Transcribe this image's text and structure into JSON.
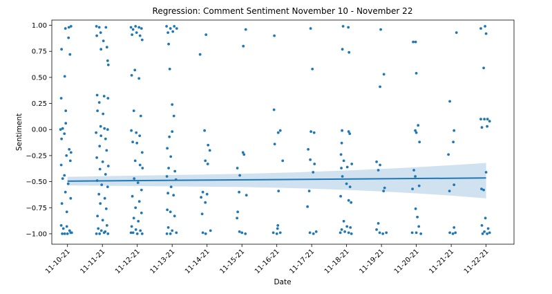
{
  "chart_data": {
    "type": "scatter",
    "title": "Regression: Comment Sentiment November 10 - November 22",
    "xlabel": "Date",
    "ylabel": "Sentiment",
    "categories": [
      "11-10-21",
      "11-11-21",
      "11-12-21",
      "11-13-21",
      "11-14-21",
      "11-15-21",
      "11-16-21",
      "11-17-21",
      "11-18-21",
      "11-19-21",
      "11-20-21",
      "11-21-21",
      "11-22-21"
    ],
    "yticks": [
      1.0,
      0.75,
      0.5,
      0.25,
      0.0,
      -0.25,
      -0.5,
      -0.75,
      -1.0
    ],
    "ytick_labels": [
      "1.00",
      "0.75",
      "0.50",
      "0.25",
      "0.00",
      "−0.25",
      "−0.50",
      "−0.75",
      "−1.00"
    ],
    "xlim": [
      -0.45,
      12.8
    ],
    "ylim": [
      -1.1,
      1.05
    ],
    "grid": false,
    "regression": {
      "start": -0.495,
      "end": -0.465,
      "ci_lower": [
        -0.57,
        -0.66
      ],
      "ci_upper": [
        -0.42,
        -0.32
      ]
    },
    "colors": {
      "points": "#1f77b4",
      "line": "#1f77b4",
      "band": "#a9c8e3"
    },
    "points": [
      {
        "x": -0.17,
        "y": 0.77
      },
      {
        "x": -0.06,
        "y": 0.97
      },
      {
        "x": 0.04,
        "y": 0.98
      },
      {
        "x": 0.1,
        "y": 0.99
      },
      {
        "x": 0.03,
        "y": 0.88
      },
      {
        "x": 0.07,
        "y": 0.72
      },
      {
        "x": -0.08,
        "y": 0.51
      },
      {
        "x": -0.18,
        "y": 0.3
      },
      {
        "x": -0.05,
        "y": 0.18
      },
      {
        "x": -0.2,
        "y": 0.0
      },
      {
        "x": -0.14,
        "y": 0.01
      },
      {
        "x": -0.05,
        "y": 0.06
      },
      {
        "x": -0.09,
        "y": -0.04
      },
      {
        "x": -0.17,
        "y": -0.09
      },
      {
        "x": 0.05,
        "y": -0.19
      },
      {
        "x": 0.1,
        "y": -0.22
      },
      {
        "x": -0.03,
        "y": -0.25
      },
      {
        "x": 0.08,
        "y": -0.3
      },
      {
        "x": -0.18,
        "y": -0.34
      },
      {
        "x": -0.09,
        "y": -0.44
      },
      {
        "x": -0.14,
        "y": -0.47
      },
      {
        "x": 0.02,
        "y": -0.52
      },
      {
        "x": -0.06,
        "y": -0.6
      },
      {
        "x": 0.09,
        "y": -0.66
      },
      {
        "x": -0.16,
        "y": -0.71
      },
      {
        "x": -0.02,
        "y": -0.79
      },
      {
        "x": -0.18,
        "y": -0.92
      },
      {
        "x": -0.12,
        "y": -0.95
      },
      {
        "x": -0.02,
        "y": -0.93
      },
      {
        "x": 0.06,
        "y": -0.97
      },
      {
        "x": 0.12,
        "y": -0.99
      },
      {
        "x": -0.15,
        "y": -1.0
      },
      {
        "x": -0.08,
        "y": -1.0
      },
      {
        "x": 0.0,
        "y": -1.0
      },
      {
        "x": 0.09,
        "y": -0.99
      },
      {
        "x": 0.83,
        "y": 0.99
      },
      {
        "x": 0.91,
        "y": 0.98
      },
      {
        "x": 1.1,
        "y": 0.98
      },
      {
        "x": 0.84,
        "y": 0.9
      },
      {
        "x": 0.95,
        "y": 0.93
      },
      {
        "x": 1.03,
        "y": 0.85
      },
      {
        "x": 1.13,
        "y": 0.79
      },
      {
        "x": 0.96,
        "y": 0.77
      },
      {
        "x": 1.15,
        "y": 0.66
      },
      {
        "x": 1.17,
        "y": 0.62
      },
      {
        "x": 0.85,
        "y": 0.33
      },
      {
        "x": 1.05,
        "y": 0.32
      },
      {
        "x": 1.16,
        "y": 0.3
      },
      {
        "x": 0.91,
        "y": 0.26
      },
      {
        "x": 0.86,
        "y": 0.18
      },
      {
        "x": 1.02,
        "y": 0.15
      },
      {
        "x": 0.95,
        "y": 0.03
      },
      {
        "x": 1.06,
        "y": 0.01
      },
      {
        "x": 1.15,
        "y": 0.0
      },
      {
        "x": 0.82,
        "y": -0.03
      },
      {
        "x": 0.96,
        "y": -0.06
      },
      {
        "x": 1.09,
        "y": -0.09
      },
      {
        "x": 0.92,
        "y": -0.16
      },
      {
        "x": 1.12,
        "y": -0.2
      },
      {
        "x": 0.84,
        "y": -0.27
      },
      {
        "x": 1.01,
        "y": -0.31
      },
      {
        "x": 1.17,
        "y": -0.35
      },
      {
        "x": 0.93,
        "y": -0.38
      },
      {
        "x": 1.09,
        "y": -0.43
      },
      {
        "x": 0.85,
        "y": -0.49
      },
      {
        "x": 0.98,
        "y": -0.53
      },
      {
        "x": 1.15,
        "y": -0.55
      },
      {
        "x": 0.9,
        "y": -0.62
      },
      {
        "x": 1.07,
        "y": -0.66
      },
      {
        "x": 0.94,
        "y": -0.71
      },
      {
        "x": 1.11,
        "y": -0.76
      },
      {
        "x": 0.86,
        "y": -0.83
      },
      {
        "x": 1.01,
        "y": -0.87
      },
      {
        "x": 1.13,
        "y": -0.92
      },
      {
        "x": 0.88,
        "y": -0.95
      },
      {
        "x": 0.97,
        "y": -0.97
      },
      {
        "x": 1.05,
        "y": -0.99
      },
      {
        "x": 1.16,
        "y": -1.0
      },
      {
        "x": 0.83,
        "y": -1.0
      },
      {
        "x": 0.92,
        "y": -1.0
      },
      {
        "x": 1.08,
        "y": -0.98
      },
      {
        "x": 1.82,
        "y": 0.98
      },
      {
        "x": 1.88,
        "y": 0.96
      },
      {
        "x": 1.95,
        "y": 0.99
      },
      {
        "x": 2.05,
        "y": 0.98
      },
      {
        "x": 2.12,
        "y": 0.97
      },
      {
        "x": 1.85,
        "y": 0.91
      },
      {
        "x": 1.98,
        "y": 0.93
      },
      {
        "x": 2.08,
        "y": 0.9
      },
      {
        "x": 2.14,
        "y": 0.86
      },
      {
        "x": 1.84,
        "y": 0.52
      },
      {
        "x": 1.93,
        "y": 0.57
      },
      {
        "x": 2.05,
        "y": 0.49
      },
      {
        "x": 1.9,
        "y": 0.18
      },
      {
        "x": 2.1,
        "y": 0.13
      },
      {
        "x": 1.83,
        "y": -0.01
      },
      {
        "x": 1.97,
        "y": -0.03
      },
      {
        "x": 2.07,
        "y": -0.06
      },
      {
        "x": 1.87,
        "y": -0.12
      },
      {
        "x": 1.99,
        "y": -0.13
      },
      {
        "x": 2.14,
        "y": -0.22
      },
      {
        "x": 1.94,
        "y": -0.3
      },
      {
        "x": 2.08,
        "y": -0.34
      },
      {
        "x": 2.15,
        "y": -0.37
      },
      {
        "x": 1.91,
        "y": -0.47
      },
      {
        "x": 2.02,
        "y": -0.51
      },
      {
        "x": 2.12,
        "y": -0.58
      },
      {
        "x": 1.86,
        "y": -0.64
      },
      {
        "x": 2.06,
        "y": -0.69
      },
      {
        "x": 1.95,
        "y": -0.75
      },
      {
        "x": 2.12,
        "y": -0.8
      },
      {
        "x": 1.9,
        "y": -0.85
      },
      {
        "x": 2.03,
        "y": -0.88
      },
      {
        "x": 1.84,
        "y": -0.93
      },
      {
        "x": 1.96,
        "y": -0.96
      },
      {
        "x": 2.09,
        "y": -0.97
      },
      {
        "x": 1.88,
        "y": -0.99
      },
      {
        "x": 2.0,
        "y": -1.0
      },
      {
        "x": 2.14,
        "y": -1.0
      },
      {
        "x": 1.82,
        "y": -0.99
      },
      {
        "x": 2.84,
        "y": 0.99
      },
      {
        "x": 2.95,
        "y": 0.97
      },
      {
        "x": 3.06,
        "y": 0.99
      },
      {
        "x": 3.13,
        "y": 0.97
      },
      {
        "x": 2.88,
        "y": 0.93
      },
      {
        "x": 3.02,
        "y": 0.94
      },
      {
        "x": 2.9,
        "y": 0.82
      },
      {
        "x": 2.93,
        "y": 0.58
      },
      {
        "x": 3.0,
        "y": 0.24
      },
      {
        "x": 3.05,
        "y": 0.13
      },
      {
        "x": 3.0,
        "y": -0.02
      },
      {
        "x": 2.92,
        "y": -0.07
      },
      {
        "x": 2.86,
        "y": -0.18
      },
      {
        "x": 2.96,
        "y": -0.26
      },
      {
        "x": 2.9,
        "y": -0.37
      },
      {
        "x": 3.08,
        "y": -0.4
      },
      {
        "x": 2.85,
        "y": -0.45
      },
      {
        "x": 3.11,
        "y": -0.48
      },
      {
        "x": 2.97,
        "y": -0.55
      },
      {
        "x": 2.88,
        "y": -0.61
      },
      {
        "x": 3.04,
        "y": -0.63
      },
      {
        "x": 2.86,
        "y": -0.77
      },
      {
        "x": 2.95,
        "y": -0.79
      },
      {
        "x": 3.07,
        "y": -0.83
      },
      {
        "x": 2.89,
        "y": -0.94
      },
      {
        "x": 3.0,
        "y": -0.97
      },
      {
        "x": 3.12,
        "y": -0.99
      },
      {
        "x": 2.85,
        "y": -1.0
      },
      {
        "x": 2.95,
        "y": -1.0
      },
      {
        "x": 3.8,
        "y": 0.72
      },
      {
        "x": 3.97,
        "y": 0.91
      },
      {
        "x": 3.93,
        "y": -0.01
      },
      {
        "x": 4.03,
        "y": -0.15
      },
      {
        "x": 4.08,
        "y": -0.2
      },
      {
        "x": 3.95,
        "y": -0.3
      },
      {
        "x": 4.02,
        "y": -0.33
      },
      {
        "x": 3.88,
        "y": -0.6
      },
      {
        "x": 4.0,
        "y": -0.62
      },
      {
        "x": 3.83,
        "y": -0.65
      },
      {
        "x": 3.95,
        "y": -0.7
      },
      {
        "x": 3.86,
        "y": -0.81
      },
      {
        "x": 4.1,
        "y": -0.97
      },
      {
        "x": 3.88,
        "y": -0.99
      },
      {
        "x": 3.96,
        "y": -1.0
      },
      {
        "x": 5.11,
        "y": 0.96
      },
      {
        "x": 5.04,
        "y": 0.8
      },
      {
        "x": 5.03,
        "y": -0.22
      },
      {
        "x": 5.06,
        "y": -0.24
      },
      {
        "x": 4.87,
        "y": -0.37
      },
      {
        "x": 4.94,
        "y": -0.44
      },
      {
        "x": 4.92,
        "y": -0.6
      },
      {
        "x": 5.13,
        "y": -0.63
      },
      {
        "x": 4.88,
        "y": -0.79
      },
      {
        "x": 4.86,
        "y": -0.85
      },
      {
        "x": 4.93,
        "y": -0.98
      },
      {
        "x": 5.0,
        "y": -0.99
      },
      {
        "x": 5.1,
        "y": -1.0
      },
      {
        "x": 5.93,
        "y": 0.9
      },
      {
        "x": 5.92,
        "y": 0.19
      },
      {
        "x": 6.04,
        "y": -0.03
      },
      {
        "x": 6.1,
        "y": -0.01
      },
      {
        "x": 5.94,
        "y": -0.14
      },
      {
        "x": 6.17,
        "y": -0.3
      },
      {
        "x": 6.05,
        "y": -0.59
      },
      {
        "x": 6.03,
        "y": -0.92
      },
      {
        "x": 6.02,
        "y": -0.95
      },
      {
        "x": 5.9,
        "y": -0.99
      },
      {
        "x": 6.0,
        "y": -1.0
      },
      {
        "x": 6.1,
        "y": -0.99
      },
      {
        "x": 6.97,
        "y": 0.97
      },
      {
        "x": 7.02,
        "y": 0.58
      },
      {
        "x": 6.98,
        "y": -0.02
      },
      {
        "x": 7.07,
        "y": -0.03
      },
      {
        "x": 6.9,
        "y": -0.19
      },
      {
        "x": 6.96,
        "y": -0.29
      },
      {
        "x": 7.08,
        "y": -0.33
      },
      {
        "x": 7.04,
        "y": -0.41
      },
      {
        "x": 6.93,
        "y": -0.59
      },
      {
        "x": 6.88,
        "y": -0.74
      },
      {
        "x": 6.95,
        "y": -0.99
      },
      {
        "x": 7.05,
        "y": -1.0
      },
      {
        "x": 7.13,
        "y": -0.98
      },
      {
        "x": 7.9,
        "y": 0.99
      },
      {
        "x": 8.05,
        "y": 0.98
      },
      {
        "x": 7.88,
        "y": 0.77
      },
      {
        "x": 8.07,
        "y": 0.74
      },
      {
        "x": 7.87,
        "y": -0.01
      },
      {
        "x": 8.06,
        "y": -0.02
      },
      {
        "x": 8.09,
        "y": -0.04
      },
      {
        "x": 7.86,
        "y": -0.13
      },
      {
        "x": 7.84,
        "y": -0.24
      },
      {
        "x": 7.92,
        "y": -0.3
      },
      {
        "x": 8.15,
        "y": -0.33
      },
      {
        "x": 7.85,
        "y": -0.37
      },
      {
        "x": 8.02,
        "y": -0.36
      },
      {
        "x": 7.88,
        "y": -0.45
      },
      {
        "x": 8.0,
        "y": -0.52
      },
      {
        "x": 8.1,
        "y": -0.55
      },
      {
        "x": 7.83,
        "y": -0.64
      },
      {
        "x": 8.06,
        "y": -0.68
      },
      {
        "x": 8.13,
        "y": -0.7
      },
      {
        "x": 7.92,
        "y": -0.88
      },
      {
        "x": 8.01,
        "y": -0.93
      },
      {
        "x": 8.11,
        "y": -0.94
      },
      {
        "x": 7.86,
        "y": -0.96
      },
      {
        "x": 7.95,
        "y": -0.98
      },
      {
        "x": 8.06,
        "y": -0.99
      },
      {
        "x": 8.14,
        "y": -1.0
      },
      {
        "x": 7.82,
        "y": -0.99
      },
      {
        "x": 8.98,
        "y": 0.96
      },
      {
        "x": 9.07,
        "y": 0.53
      },
      {
        "x": 8.96,
        "y": 0.41
      },
      {
        "x": 8.86,
        "y": -0.31
      },
      {
        "x": 8.96,
        "y": -0.34
      },
      {
        "x": 8.91,
        "y": -0.39
      },
      {
        "x": 9.09,
        "y": -0.56
      },
      {
        "x": 9.06,
        "y": -0.59
      },
      {
        "x": 8.91,
        "y": -0.9
      },
      {
        "x": 8.86,
        "y": -0.96
      },
      {
        "x": 8.95,
        "y": -0.99
      },
      {
        "x": 9.04,
        "y": -1.0
      },
      {
        "x": 9.14,
        "y": -0.99
      },
      {
        "x": 9.91,
        "y": 0.84
      },
      {
        "x": 9.98,
        "y": 0.84
      },
      {
        "x": 10.0,
        "y": 0.54
      },
      {
        "x": 10.05,
        "y": 0.04
      },
      {
        "x": 9.97,
        "y": -0.01
      },
      {
        "x": 10.0,
        "y": -0.03
      },
      {
        "x": 10.09,
        "y": -0.12
      },
      {
        "x": 9.93,
        "y": -0.39
      },
      {
        "x": 9.97,
        "y": -0.45
      },
      {
        "x": 9.89,
        "y": -0.57
      },
      {
        "x": 10.08,
        "y": -0.54
      },
      {
        "x": 9.98,
        "y": -0.76
      },
      {
        "x": 10.03,
        "y": -0.84
      },
      {
        "x": 10.07,
        "y": -0.93
      },
      {
        "x": 9.88,
        "y": -0.99
      },
      {
        "x": 10.0,
        "y": -0.99
      },
      {
        "x": 10.13,
        "y": -1.0
      },
      {
        "x": 11.15,
        "y": 0.93
      },
      {
        "x": 10.96,
        "y": 0.27
      },
      {
        "x": 11.08,
        "y": -0.01
      },
      {
        "x": 11.06,
        "y": -0.12
      },
      {
        "x": 10.92,
        "y": -0.24
      },
      {
        "x": 11.08,
        "y": -0.53
      },
      {
        "x": 10.95,
        "y": -0.59
      },
      {
        "x": 11.08,
        "y": -0.94
      },
      {
        "x": 10.96,
        "y": -0.99
      },
      {
        "x": 11.05,
        "y": -1.0
      },
      {
        "x": 11.12,
        "y": -0.99
      },
      {
        "x": 11.85,
        "y": 0.97
      },
      {
        "x": 11.97,
        "y": 0.99
      },
      {
        "x": 12.0,
        "y": 0.92
      },
      {
        "x": 11.93,
        "y": 0.59
      },
      {
        "x": 11.85,
        "y": 0.1
      },
      {
        "x": 11.95,
        "y": 0.1
      },
      {
        "x": 12.04,
        "y": 0.1
      },
      {
        "x": 12.1,
        "y": 0.08
      },
      {
        "x": 11.88,
        "y": 0.02
      },
      {
        "x": 12.03,
        "y": 0.03
      },
      {
        "x": 12.0,
        "y": -0.41
      },
      {
        "x": 11.87,
        "y": -0.57
      },
      {
        "x": 11.93,
        "y": -0.58
      },
      {
        "x": 11.98,
        "y": -0.85
      },
      {
        "x": 11.88,
        "y": -0.92
      },
      {
        "x": 11.95,
        "y": -0.98
      },
      {
        "x": 12.06,
        "y": -0.95
      },
      {
        "x": 12.1,
        "y": -0.99
      },
      {
        "x": 11.9,
        "y": -1.0
      },
      {
        "x": 12.03,
        "y": -1.0
      }
    ]
  }
}
